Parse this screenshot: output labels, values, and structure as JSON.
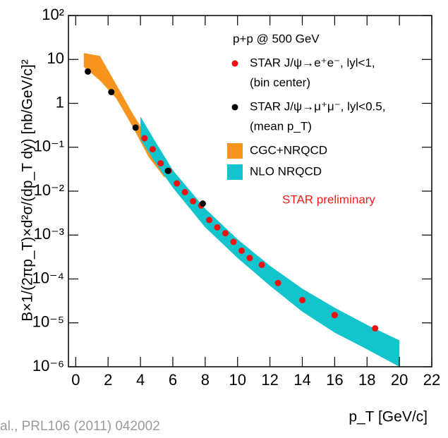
{
  "chart_data": {
    "type": "scatter",
    "x_label": "p_T [GeV/c]",
    "y_label": "B×1/(2πp_T)×d²σ/(dp_T dy)   [nb/GeV/c]²",
    "legend_title": "p+p @ 500 GeV",
    "annotation": "STAR preliminary",
    "annotation_color": "#ff1a1a",
    "footer": "al., PRL106 (2011) 042002",
    "log_y": true,
    "xlim": [
      -0.45,
      22
    ],
    "ylim": [
      1e-06,
      100
    ],
    "xticks": [
      0,
      2,
      4,
      6,
      8,
      10,
      12,
      14,
      16,
      18,
      20,
      22
    ],
    "yticks": [
      {
        "value": 1e-06,
        "label": "10⁻⁶"
      },
      {
        "value": 1e-05,
        "label": "10⁻⁵"
      },
      {
        "value": 0.0001,
        "label": "10⁻⁴"
      },
      {
        "value": 0.001,
        "label": "10⁻³"
      },
      {
        "value": 0.01,
        "label": "10⁻²"
      },
      {
        "value": 0.1,
        "label": "10⁻¹"
      },
      1,
      10,
      {
        "value": 100,
        "label": "10²"
      }
    ],
    "series": [
      {
        "name": "STAR  J/ψ→e⁺e⁻, lyl<1,",
        "name_line2": "(bin center)",
        "type": "scatter",
        "color": "#ee1111",
        "x": [
          4.25,
          4.75,
          5.25,
          5.75,
          6.25,
          6.75,
          7.25,
          7.75,
          8.25,
          8.75,
          9.25,
          9.75,
          10.25,
          10.75,
          11.5,
          12.5,
          14,
          16,
          18.5
        ],
        "values": [
          0.16,
          0.09,
          0.043,
          0.029,
          0.015,
          0.0095,
          0.0059,
          0.0047,
          0.0022,
          0.0015,
          0.0011,
          0.0007,
          0.00044,
          0.0003,
          0.00021,
          8.1e-05,
          3.3e-05,
          1.5e-05,
          7.5e-06
        ]
      },
      {
        "name": "STAR  J/ψ→μ⁺μ⁻, lyl<0.5,",
        "name_line2": "(mean p_T)",
        "type": "scatter",
        "color": "#000000",
        "x": [
          0.75,
          2.2,
          3.7,
          5.7,
          7.85
        ],
        "values": [
          5.3,
          1.8,
          0.28,
          0.029,
          0.0052
        ]
      },
      {
        "name": "CGC+NRQCD",
        "type": "band",
        "color": "#f7941d",
        "x": [
          0.5,
          1.5,
          2.5,
          3.5,
          4.5,
          5.5
        ],
        "upper": [
          14,
          12,
          2.7,
          0.6,
          0.15,
          0.04
        ],
        "lower": [
          6.8,
          3.3,
          1.3,
          0.3,
          0.06,
          0.02
        ]
      },
      {
        "name": "NLO NRQCD",
        "type": "band",
        "color": "#12c4cc",
        "x": [
          4,
          5,
          6,
          8,
          10,
          12,
          14,
          16,
          18,
          20
        ],
        "upper": [
          0.5,
          0.12,
          0.03,
          0.004,
          0.0008,
          0.0002,
          6e-05,
          2.2e-05,
          9e-06,
          4e-06
        ],
        "lower": [
          0.15,
          0.04,
          0.012,
          0.0015,
          0.0003,
          7e-05,
          1.8e-05,
          6e-06,
          2.5e-06,
          1e-06
        ]
      }
    ]
  }
}
